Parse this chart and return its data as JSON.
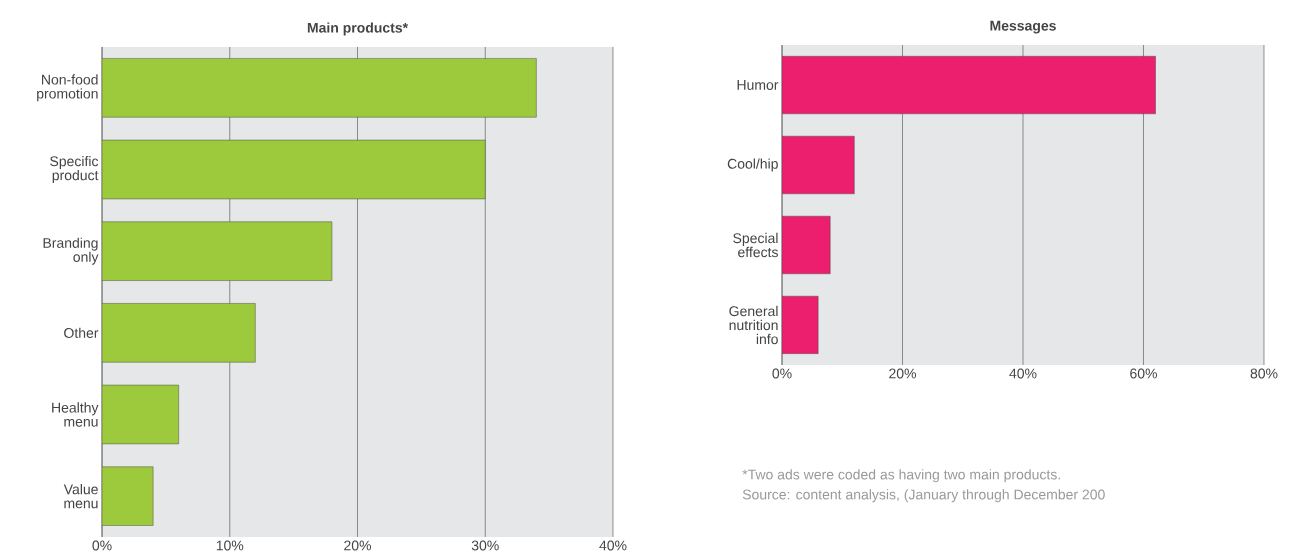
{
  "chart_data": [
    {
      "type": "bar",
      "orientation": "horizontal",
      "title": "Main products*",
      "categories": [
        "Non-food promotion",
        "Specific product",
        "Branding only",
        "Other",
        "Healthy menu",
        "Value menu"
      ],
      "values": [
        34,
        30,
        18,
        12,
        6,
        4
      ],
      "color": "#9dc93c",
      "xlim": [
        0,
        40
      ],
      "xticks": [
        {
          "value": 0,
          "label": "0%"
        },
        {
          "value": 10,
          "label": "10%"
        },
        {
          "value": 20,
          "label": "20%"
        },
        {
          "value": 30,
          "label": "30%"
        },
        {
          "value": 40,
          "label": "40%"
        }
      ],
      "grid": "x"
    },
    {
      "type": "bar",
      "orientation": "horizontal",
      "title": "Messages",
      "categories": [
        "Humor",
        "Cool/hip",
        "Special effects",
        "General nutrition info"
      ],
      "values": [
        62,
        12,
        8,
        6
      ],
      "color": "#ec1e6e",
      "xlim": [
        0,
        80
      ],
      "xticks": [
        {
          "value": 0,
          "label": "0%"
        },
        {
          "value": 20,
          "label": "20%"
        },
        {
          "value": 40,
          "label": "40%"
        },
        {
          "value": 60,
          "label": "60%"
        },
        {
          "value": 80,
          "label": "80%"
        }
      ],
      "grid": "x",
      "annotations": [
        "*Two ads were coded as having two main products.",
        "Source: content analysis, (January through December 200"
      ]
    }
  ]
}
